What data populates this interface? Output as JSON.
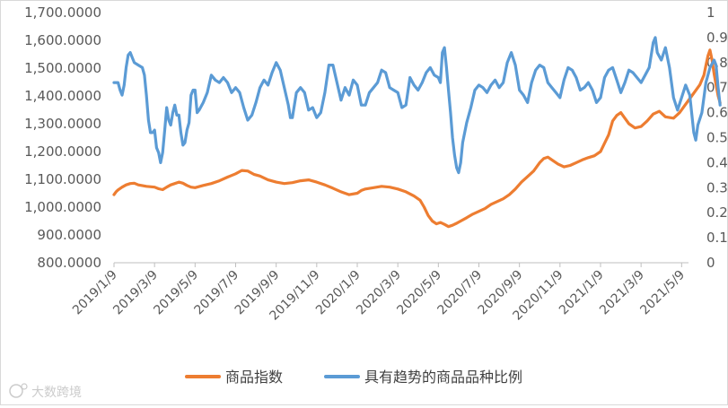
{
  "chart_data": {
    "type": "line",
    "title": "",
    "xlabel": "",
    "ylabel": "",
    "x_ticks": [
      "2019/1/9",
      "2019/3/9",
      "2019/5/9",
      "2019/7/9",
      "2019/9/9",
      "2019/11/9",
      "2020/1/9",
      "2020/3/9",
      "2020/5/9",
      "2020/7/9",
      "2020/9/9",
      "2020/11/9",
      "2021/1/9",
      "2021/3/9",
      "2021/5/9"
    ],
    "y_left": {
      "ylim": [
        800,
        1700
      ],
      "ticks": [
        "800.0000",
        "900.0000",
        "1,000.0000",
        "1,100.0000",
        "1,200.0000",
        "1,300.0000",
        "1,400.0000",
        "1,500.0000",
        "1,600.0000",
        "1,700.0000"
      ]
    },
    "y_right": {
      "ylim": [
        0,
        1
      ],
      "ticks": [
        "0",
        "0.1",
        "0.2",
        "0.3",
        "0.4",
        "0.5",
        "0.6",
        "0.7",
        "0.8",
        "0.9",
        "1"
      ]
    },
    "legend_position": "bottom",
    "series": [
      {
        "name": "商品指数",
        "axis": "left",
        "color": "#ed7d31",
        "points": [
          [
            0,
            1045
          ],
          [
            0.05,
            1055
          ],
          [
            0.1,
            1062
          ],
          [
            0.2,
            1072
          ],
          [
            0.3,
            1080
          ],
          [
            0.4,
            1085
          ],
          [
            0.5,
            1086
          ],
          [
            0.6,
            1080
          ],
          [
            0.8,
            1075
          ],
          [
            1.0,
            1072
          ],
          [
            1.1,
            1066
          ],
          [
            1.2,
            1063
          ],
          [
            1.3,
            1072
          ],
          [
            1.4,
            1080
          ],
          [
            1.5,
            1085
          ],
          [
            1.6,
            1090
          ],
          [
            1.7,
            1086
          ],
          [
            1.8,
            1078
          ],
          [
            1.9,
            1072
          ],
          [
            2.0,
            1070
          ],
          [
            2.2,
            1078
          ],
          [
            2.4,
            1085
          ],
          [
            2.6,
            1095
          ],
          [
            2.8,
            1108
          ],
          [
            3.0,
            1120
          ],
          [
            3.15,
            1132
          ],
          [
            3.3,
            1130
          ],
          [
            3.45,
            1118
          ],
          [
            3.6,
            1112
          ],
          [
            3.8,
            1098
          ],
          [
            4.0,
            1090
          ],
          [
            4.2,
            1085
          ],
          [
            4.4,
            1088
          ],
          [
            4.6,
            1095
          ],
          [
            4.8,
            1098
          ],
          [
            5.0,
            1090
          ],
          [
            5.2,
            1080
          ],
          [
            5.4,
            1068
          ],
          [
            5.6,
            1055
          ],
          [
            5.8,
            1045
          ],
          [
            6.0,
            1050
          ],
          [
            6.1,
            1060
          ],
          [
            6.2,
            1065
          ],
          [
            6.4,
            1070
          ],
          [
            6.6,
            1075
          ],
          [
            6.8,
            1072
          ],
          [
            7.0,
            1065
          ],
          [
            7.2,
            1055
          ],
          [
            7.4,
            1040
          ],
          [
            7.55,
            1025
          ],
          [
            7.65,
            1000
          ],
          [
            7.75,
            970
          ],
          [
            7.85,
            950
          ],
          [
            7.95,
            940
          ],
          [
            8.05,
            945
          ],
          [
            8.15,
            938
          ],
          [
            8.25,
            930
          ],
          [
            8.35,
            935
          ],
          [
            8.45,
            942
          ],
          [
            8.55,
            950
          ],
          [
            8.7,
            962
          ],
          [
            8.85,
            975
          ],
          [
            9.0,
            985
          ],
          [
            9.15,
            995
          ],
          [
            9.3,
            1010
          ],
          [
            9.45,
            1020
          ],
          [
            9.6,
            1030
          ],
          [
            9.75,
            1045
          ],
          [
            9.9,
            1065
          ],
          [
            10.05,
            1090
          ],
          [
            10.2,
            1110
          ],
          [
            10.35,
            1130
          ],
          [
            10.5,
            1160
          ],
          [
            10.6,
            1175
          ],
          [
            10.7,
            1180
          ],
          [
            10.8,
            1170
          ],
          [
            10.95,
            1155
          ],
          [
            11.1,
            1145
          ],
          [
            11.25,
            1150
          ],
          [
            11.4,
            1160
          ],
          [
            11.55,
            1170
          ],
          [
            11.7,
            1178
          ],
          [
            11.85,
            1185
          ],
          [
            12.0,
            1200
          ],
          [
            12.1,
            1230
          ],
          [
            12.2,
            1260
          ],
          [
            12.3,
            1310
          ],
          [
            12.4,
            1330
          ],
          [
            12.5,
            1340
          ],
          [
            12.6,
            1320
          ],
          [
            12.7,
            1300
          ],
          [
            12.85,
            1285
          ],
          [
            13.0,
            1290
          ],
          [
            13.15,
            1310
          ],
          [
            13.3,
            1335
          ],
          [
            13.45,
            1345
          ],
          [
            13.6,
            1325
          ],
          [
            13.8,
            1320
          ],
          [
            13.95,
            1340
          ],
          [
            14.1,
            1370
          ],
          [
            14.25,
            1400
          ],
          [
            14.35,
            1420
          ],
          [
            14.45,
            1440
          ],
          [
            14.55,
            1475
          ],
          [
            14.6,
            1510
          ],
          [
            14.65,
            1545
          ],
          [
            14.7,
            1565
          ],
          [
            14.75,
            1530
          ],
          [
            14.8,
            1480
          ],
          [
            14.85,
            1440
          ],
          [
            14.9,
            1400
          ],
          [
            14.95,
            1375
          ]
        ]
      },
      {
        "name": "具有趋势的商品品种比例",
        "axis": "right",
        "color": "#5b9bd5",
        "points": [
          [
            0,
            0.72
          ],
          [
            0.05,
            0.72
          ],
          [
            0.1,
            0.72
          ],
          [
            0.15,
            0.69
          ],
          [
            0.2,
            0.67
          ],
          [
            0.25,
            0.71
          ],
          [
            0.3,
            0.78
          ],
          [
            0.35,
            0.83
          ],
          [
            0.4,
            0.84
          ],
          [
            0.45,
            0.82
          ],
          [
            0.5,
            0.8
          ],
          [
            0.6,
            0.79
          ],
          [
            0.7,
            0.78
          ],
          [
            0.75,
            0.75
          ],
          [
            0.8,
            0.67
          ],
          [
            0.85,
            0.57
          ],
          [
            0.9,
            0.52
          ],
          [
            0.95,
            0.52
          ],
          [
            1.0,
            0.53
          ],
          [
            1.05,
            0.46
          ],
          [
            1.1,
            0.44
          ],
          [
            1.15,
            0.4
          ],
          [
            1.2,
            0.44
          ],
          [
            1.25,
            0.53
          ],
          [
            1.3,
            0.62
          ],
          [
            1.35,
            0.57
          ],
          [
            1.4,
            0.55
          ],
          [
            1.45,
            0.6
          ],
          [
            1.5,
            0.63
          ],
          [
            1.55,
            0.59
          ],
          [
            1.6,
            0.59
          ],
          [
            1.65,
            0.52
          ],
          [
            1.7,
            0.47
          ],
          [
            1.75,
            0.48
          ],
          [
            1.8,
            0.53
          ],
          [
            1.85,
            0.56
          ],
          [
            1.9,
            0.67
          ],
          [
            1.95,
            0.69
          ],
          [
            2.0,
            0.69
          ],
          [
            2.05,
            0.6
          ],
          [
            2.1,
            0.61
          ],
          [
            2.2,
            0.64
          ],
          [
            2.3,
            0.68
          ],
          [
            2.4,
            0.75
          ],
          [
            2.5,
            0.73
          ],
          [
            2.6,
            0.72
          ],
          [
            2.7,
            0.74
          ],
          [
            2.8,
            0.72
          ],
          [
            2.9,
            0.68
          ],
          [
            3.0,
            0.7
          ],
          [
            3.1,
            0.68
          ],
          [
            3.2,
            0.62
          ],
          [
            3.3,
            0.57
          ],
          [
            3.4,
            0.59
          ],
          [
            3.5,
            0.64
          ],
          [
            3.6,
            0.7
          ],
          [
            3.7,
            0.73
          ],
          [
            3.8,
            0.71
          ],
          [
            3.9,
            0.76
          ],
          [
            4.0,
            0.8
          ],
          [
            4.1,
            0.77
          ],
          [
            4.2,
            0.7
          ],
          [
            4.3,
            0.63
          ],
          [
            4.35,
            0.58
          ],
          [
            4.4,
            0.58
          ],
          [
            4.5,
            0.68
          ],
          [
            4.6,
            0.7
          ],
          [
            4.7,
            0.68
          ],
          [
            4.8,
            0.61
          ],
          [
            4.9,
            0.62
          ],
          [
            5.0,
            0.58
          ],
          [
            5.1,
            0.6
          ],
          [
            5.2,
            0.68
          ],
          [
            5.3,
            0.79
          ],
          [
            5.4,
            0.79
          ],
          [
            5.5,
            0.72
          ],
          [
            5.6,
            0.65
          ],
          [
            5.7,
            0.7
          ],
          [
            5.8,
            0.67
          ],
          [
            5.9,
            0.73
          ],
          [
            6.0,
            0.71
          ],
          [
            6.1,
            0.63
          ],
          [
            6.2,
            0.63
          ],
          [
            6.3,
            0.68
          ],
          [
            6.4,
            0.7
          ],
          [
            6.5,
            0.72
          ],
          [
            6.6,
            0.77
          ],
          [
            6.7,
            0.76
          ],
          [
            6.8,
            0.7
          ],
          [
            6.9,
            0.69
          ],
          [
            7.0,
            0.68
          ],
          [
            7.1,
            0.62
          ],
          [
            7.2,
            0.63
          ],
          [
            7.3,
            0.74
          ],
          [
            7.4,
            0.71
          ],
          [
            7.5,
            0.69
          ],
          [
            7.6,
            0.72
          ],
          [
            7.7,
            0.76
          ],
          [
            7.8,
            0.78
          ],
          [
            7.9,
            0.75
          ],
          [
            8.0,
            0.74
          ],
          [
            8.05,
            0.72
          ],
          [
            8.1,
            0.84
          ],
          [
            8.15,
            0.86
          ],
          [
            8.2,
            0.78
          ],
          [
            8.25,
            0.69
          ],
          [
            8.3,
            0.6
          ],
          [
            8.35,
            0.5
          ],
          [
            8.4,
            0.43
          ],
          [
            8.45,
            0.38
          ],
          [
            8.5,
            0.36
          ],
          [
            8.55,
            0.4
          ],
          [
            8.6,
            0.48
          ],
          [
            8.7,
            0.56
          ],
          [
            8.8,
            0.62
          ],
          [
            8.9,
            0.69
          ],
          [
            9.0,
            0.71
          ],
          [
            9.1,
            0.7
          ],
          [
            9.2,
            0.68
          ],
          [
            9.3,
            0.71
          ],
          [
            9.4,
            0.73
          ],
          [
            9.5,
            0.7
          ],
          [
            9.6,
            0.72
          ],
          [
            9.7,
            0.8
          ],
          [
            9.8,
            0.84
          ],
          [
            9.9,
            0.79
          ],
          [
            10.0,
            0.69
          ],
          [
            10.1,
            0.67
          ],
          [
            10.2,
            0.64
          ],
          [
            10.3,
            0.72
          ],
          [
            10.4,
            0.77
          ],
          [
            10.5,
            0.79
          ],
          [
            10.6,
            0.78
          ],
          [
            10.7,
            0.72
          ],
          [
            10.8,
            0.7
          ],
          [
            10.9,
            0.68
          ],
          [
            11.0,
            0.66
          ],
          [
            11.1,
            0.73
          ],
          [
            11.2,
            0.78
          ],
          [
            11.3,
            0.77
          ],
          [
            11.4,
            0.74
          ],
          [
            11.5,
            0.69
          ],
          [
            11.6,
            0.7
          ],
          [
            11.7,
            0.72
          ],
          [
            11.8,
            0.69
          ],
          [
            11.9,
            0.64
          ],
          [
            12.0,
            0.66
          ],
          [
            12.1,
            0.74
          ],
          [
            12.2,
            0.77
          ],
          [
            12.3,
            0.78
          ],
          [
            12.4,
            0.73
          ],
          [
            12.5,
            0.68
          ],
          [
            12.6,
            0.72
          ],
          [
            12.7,
            0.77
          ],
          [
            12.8,
            0.76
          ],
          [
            12.9,
            0.74
          ],
          [
            13.0,
            0.72
          ],
          [
            13.1,
            0.75
          ],
          [
            13.2,
            0.78
          ],
          [
            13.3,
            0.88
          ],
          [
            13.35,
            0.9
          ],
          [
            13.4,
            0.84
          ],
          [
            13.5,
            0.81
          ],
          [
            13.6,
            0.86
          ],
          [
            13.7,
            0.78
          ],
          [
            13.8,
            0.66
          ],
          [
            13.9,
            0.61
          ],
          [
            14.0,
            0.66
          ],
          [
            14.1,
            0.71
          ],
          [
            14.2,
            0.67
          ],
          [
            14.3,
            0.52
          ],
          [
            14.35,
            0.49
          ],
          [
            14.4,
            0.55
          ],
          [
            14.5,
            0.6
          ],
          [
            14.6,
            0.72
          ],
          [
            14.7,
            0.78
          ],
          [
            14.8,
            0.81
          ],
          [
            14.85,
            0.79
          ],
          [
            14.9,
            0.7
          ],
          [
            14.95,
            0.63
          ]
        ]
      }
    ]
  },
  "watermark": "大数跨境"
}
